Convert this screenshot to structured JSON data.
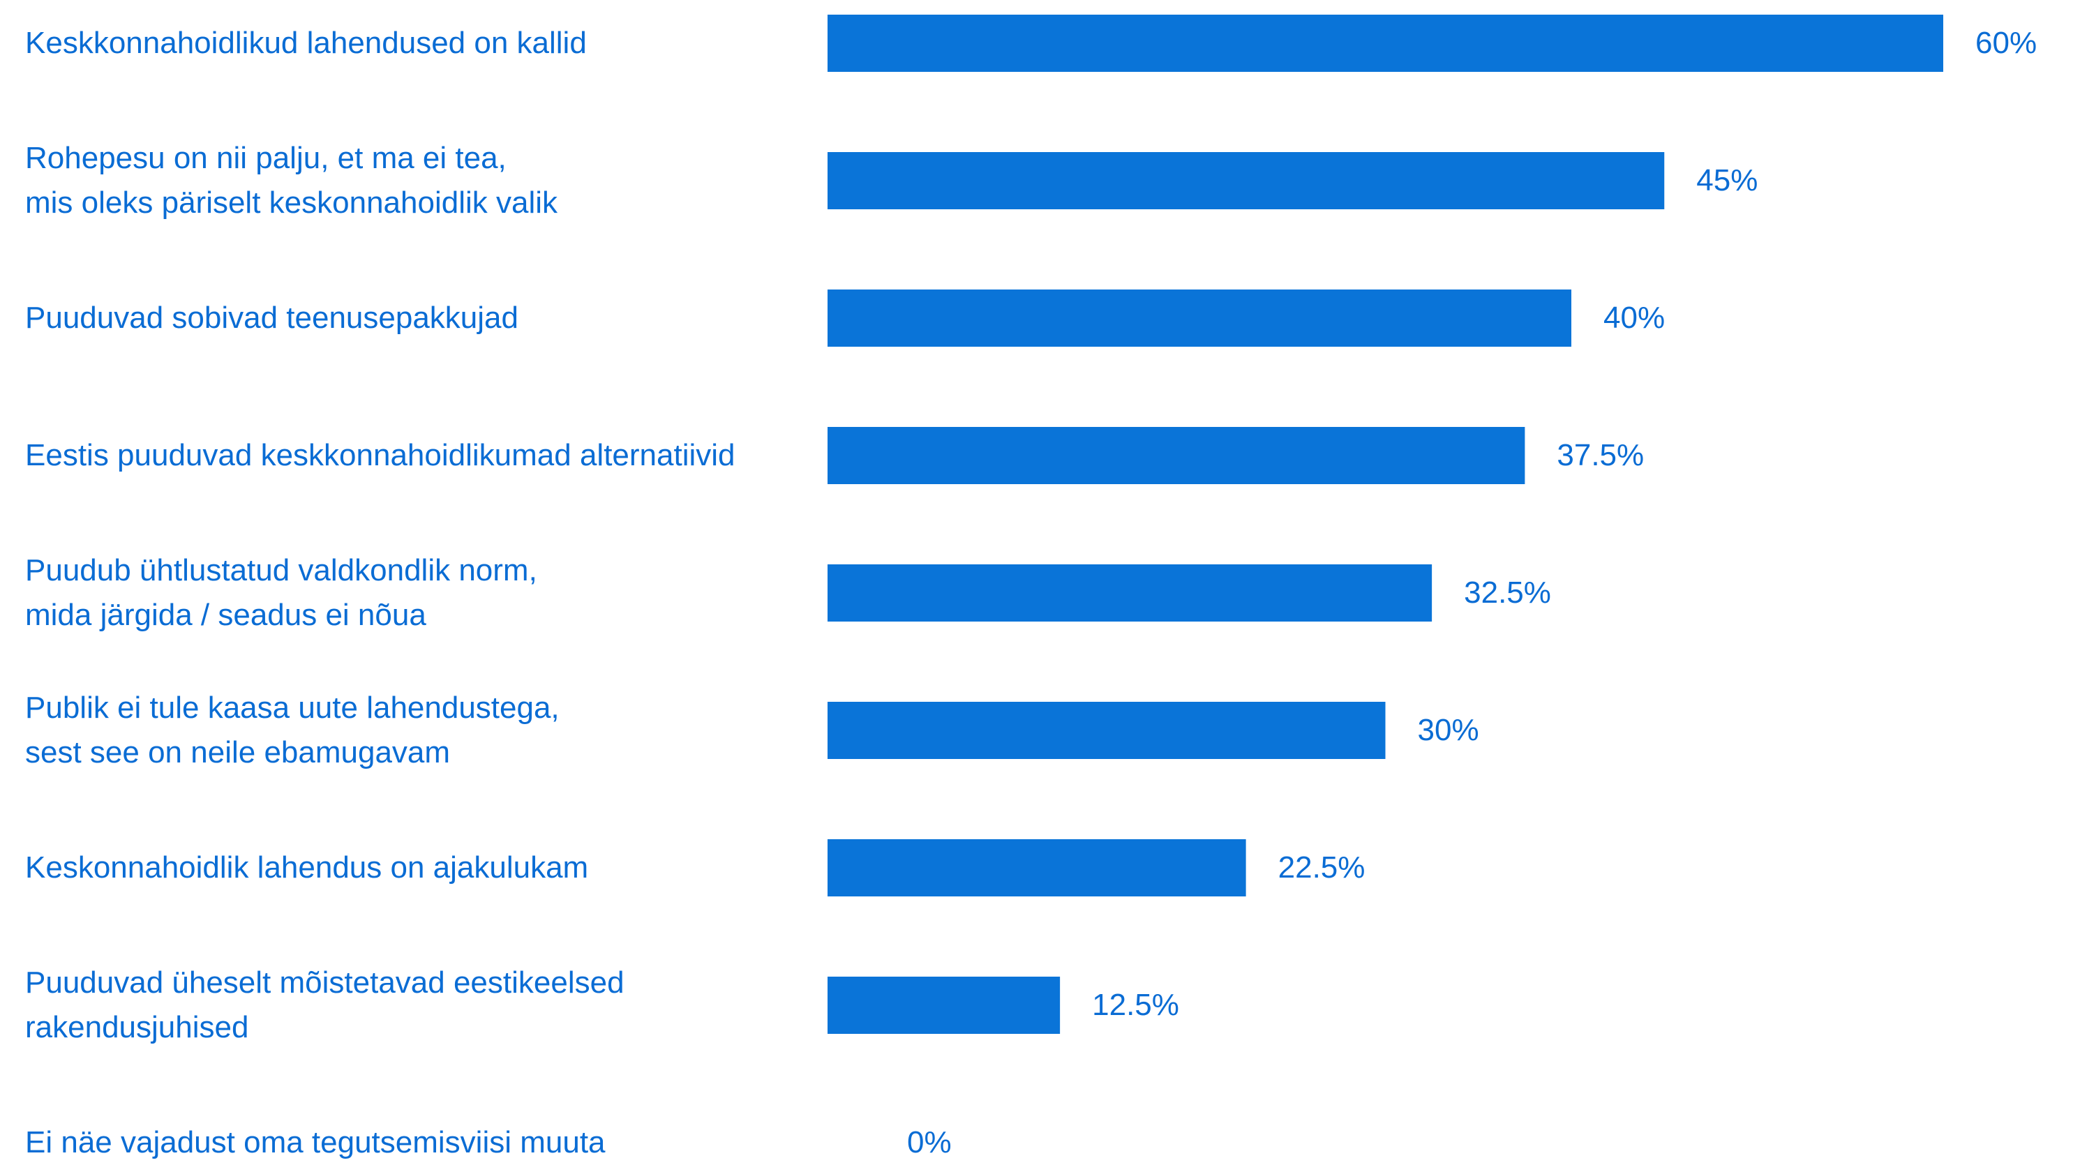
{
  "chart_data": {
    "type": "bar",
    "orientation": "horizontal",
    "categories": [
      "Keskkonnahoidlikud lahendused on kallid",
      "Rohepesu on nii palju, et ma ei tea,\nmis oleks päriselt keskonnahoidlik valik",
      "Puuduvad sobivad teenusepakkujad",
      "Eestis puuduvad keskkonnahoidlikumad alternatiivid",
      "Puudub ühtlustatud valdkondlik norm,\nmida järgida / seadus ei nõua",
      "Publik ei tule kaasa uute lahendustega,\nsest see on neile ebamugavam",
      "Keskonnahoidlik lahendus on ajakulukam",
      "Puuduvad üheselt mõistetavad eestikeelsed\nrakendusjuhised",
      "Ei näe vajadust oma tegutsemisviisi muuta"
    ],
    "values": [
      60,
      45,
      40,
      37.5,
      32.5,
      30,
      22.5,
      12.5,
      0
    ],
    "value_labels": [
      "60%",
      "45%",
      "40%",
      "37.5%",
      "32.5%",
      "30%",
      "22.5%",
      "12.5%",
      "0%"
    ],
    "xlim": [
      0,
      60
    ],
    "grid": false,
    "bar_color": "#0a74d8",
    "text_color": "#0a6cd4"
  }
}
